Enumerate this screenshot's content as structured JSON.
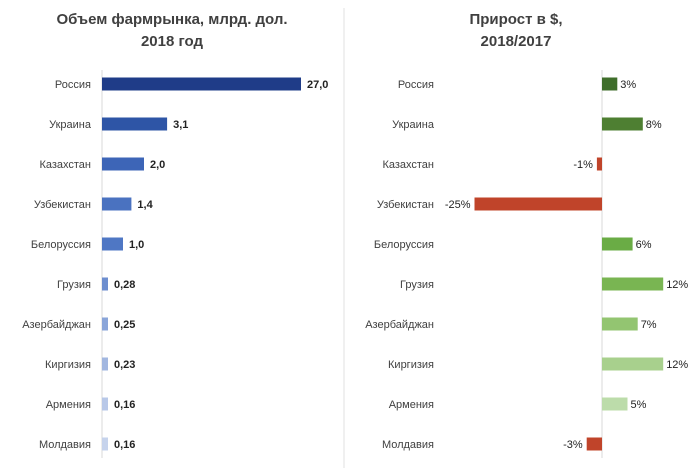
{
  "chart_data": [
    {
      "type": "bar",
      "orientation": "horizontal",
      "title_lines": [
        "Объем  фармрынка, млрд. дол.",
        "2018 год"
      ],
      "categories": [
        "Россия",
        "Украина",
        "Казахстан",
        "Узбекистан",
        "Белоруссия",
        "Грузия",
        "Азербайджан",
        "Киргизия",
        "Армения",
        "Молдавия"
      ],
      "values": [
        27.0,
        3.1,
        2.0,
        1.4,
        1.0,
        0.28,
        0.25,
        0.23,
        0.16,
        0.16
      ],
      "value_labels": [
        "27,0",
        "3,1",
        "2,0",
        "1,4",
        "1,0",
        "0,28",
        "0,25",
        "0,23",
        "0,16",
        "0,16"
      ],
      "scale": "broken",
      "colors": [
        "#1f3c88",
        "#2e55a6",
        "#3d65b7",
        "#4a72c0",
        "#4f77c4",
        "#6d8ecf",
        "#8aa5d9",
        "#a2b7e0",
        "#b8c8e8",
        "#c6d3ec"
      ],
      "grid": false,
      "legend": "none"
    },
    {
      "type": "bar",
      "orientation": "horizontal",
      "title_lines": [
        "Прирост в $,",
        "2018/2017"
      ],
      "categories": [
        "Россия",
        "Украина",
        "Казахстан",
        "Узбекистан",
        "Белоруссия",
        "Грузия",
        "Азербайджан",
        "Киргизия",
        "Армения",
        "Молдавия"
      ],
      "values": [
        3,
        8,
        -1,
        -25,
        6,
        12,
        7,
        12,
        5,
        -3
      ],
      "value_labels": [
        "3%",
        "8%",
        "-1%",
        "-25%",
        "6%",
        "12%",
        "7%",
        "12%",
        "5%",
        "-3%"
      ],
      "unit": "%",
      "colors": [
        "#3f6e2b",
        "#4e7f32",
        "#c0442a",
        "#c0442a",
        "#6aac45",
        "#79b552",
        "#93c571",
        "#a8d08d",
        "#bcdcaa",
        "#c0442a"
      ],
      "grid": false,
      "legend": "none"
    }
  ]
}
